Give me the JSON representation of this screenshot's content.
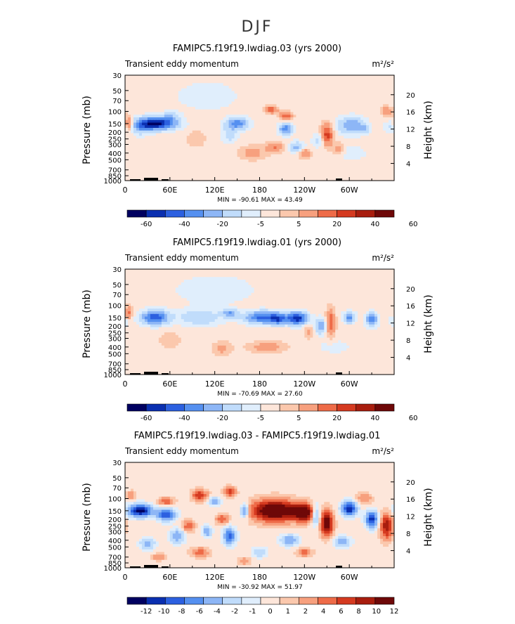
{
  "figure": {
    "title": "DJF"
  },
  "colors": {
    "div_scale": [
      "#000060",
      "#0a2fb0",
      "#2c60e0",
      "#5590f0",
      "#8db6f6",
      "#c0dcfb",
      "#e0eefc",
      "#fde6da",
      "#fbc8ad",
      "#f7a07e",
      "#ee6b48",
      "#d53a20",
      "#a81d0e",
      "#6e0808"
    ]
  },
  "chart_data": [
    {
      "type": "heatmap",
      "id": "panel1",
      "title": "FAMIPC5.f19f19.lwdiag.03 (yrs 2000)",
      "subtitle_left": "Transient eddy momentum",
      "units": "m²/s²",
      "ylabel": "Pressure (mb)",
      "ylabel_right": "Height (km)",
      "pressure_ticks": [
        "30",
        "50",
        "70",
        "100",
        "150",
        "200",
        "250",
        "300",
        "400",
        "500",
        "700",
        "850",
        "1000"
      ],
      "height_ticks": [
        "20",
        "16",
        "12",
        "8",
        "4"
      ],
      "lon_ticks": [
        "0",
        "60E",
        "120E",
        "180",
        "120W",
        "60W"
      ],
      "stats": "MIN = -90.61   MAX =  43.49",
      "colorbar_labels": [
        "-60",
        "-40",
        "-20",
        "-5",
        "5",
        "20",
        "40",
        "60"
      ],
      "blobs": [
        {
          "lon": 40,
          "p": 150,
          "w": 26,
          "h": 0.09,
          "a": -6.5
        },
        {
          "lon": 20,
          "p": 180,
          "w": 12,
          "h": 0.1,
          "a": -1.6
        },
        {
          "lon": 62,
          "p": 120,
          "w": 12,
          "h": 0.08,
          "a": -1.5
        },
        {
          "lon": 150,
          "p": 150,
          "w": 15,
          "h": 0.09,
          "a": -3.5
        },
        {
          "lon": 140,
          "p": 220,
          "w": 10,
          "h": 0.12,
          "a": -1.5
        },
        {
          "lon": 215,
          "p": 180,
          "w": 9,
          "h": 0.08,
          "a": -3.8
        },
        {
          "lon": 230,
          "p": 330,
          "w": 10,
          "h": 0.08,
          "a": -2.4
        },
        {
          "lon": 260,
          "p": 260,
          "w": 9,
          "h": 0.1,
          "a": -1.5
        },
        {
          "lon": 303,
          "p": 160,
          "w": 18,
          "h": 0.12,
          "a": -3.0
        },
        {
          "lon": 320,
          "p": 180,
          "w": 6,
          "h": 0.06,
          "a": -2.0
        },
        {
          "lon": 110,
          "p": 60,
          "w": 40,
          "h": 0.2,
          "a": -0.9
        },
        {
          "lon": 300,
          "p": 400,
          "w": 30,
          "h": 0.15,
          "a": -0.6
        },
        {
          "lon": 355,
          "p": 170,
          "w": 8,
          "h": 0.08,
          "a": -1.0
        },
        {
          "lon": 5,
          "p": 150,
          "w": 6,
          "h": 0.1,
          "a": 3.0
        },
        {
          "lon": 195,
          "p": 95,
          "w": 9,
          "h": 0.05,
          "a": 3.0
        },
        {
          "lon": 215,
          "p": 115,
          "w": 9,
          "h": 0.06,
          "a": 2.6
        },
        {
          "lon": 270,
          "p": 220,
          "w": 8,
          "h": 0.16,
          "a": 3.6
        },
        {
          "lon": 240,
          "p": 400,
          "w": 8,
          "h": 0.07,
          "a": 2.3
        },
        {
          "lon": 200,
          "p": 330,
          "w": 12,
          "h": 0.08,
          "a": 2.0
        },
        {
          "lon": 350,
          "p": 100,
          "w": 8,
          "h": 0.07,
          "a": 1.9
        },
        {
          "lon": 170,
          "p": 400,
          "w": 18,
          "h": 0.1,
          "a": 1.4
        },
        {
          "lon": 95,
          "p": 250,
          "w": 12,
          "h": 0.12,
          "a": 1.0
        },
        {
          "lon": 285,
          "p": 350,
          "w": 8,
          "h": 0.1,
          "a": 1.6
        }
      ]
    },
    {
      "type": "heatmap",
      "id": "panel2",
      "title": "FAMIPC5.f19f19.lwdiag.01 (yrs 2000)",
      "subtitle_left": "Transient eddy momentum",
      "units": "m²/s²",
      "ylabel": "Pressure (mb)",
      "ylabel_right": "Height (km)",
      "pressure_ticks": [
        "30",
        "50",
        "70",
        "100",
        "150",
        "200",
        "250",
        "300",
        "400",
        "500",
        "700",
        "850",
        "1000"
      ],
      "height_ticks": [
        "20",
        "16",
        "12",
        "8",
        "4"
      ],
      "lon_ticks": [
        "0",
        "60E",
        "120E",
        "180",
        "120W",
        "60W"
      ],
      "stats": "MIN = -70.69   MAX =  27.60",
      "colorbar_labels": [
        "-60",
        "-40",
        "-20",
        "-5",
        "5",
        "20",
        "40",
        "60"
      ],
      "blobs": [
        {
          "lon": 40,
          "p": 150,
          "w": 18,
          "h": 0.1,
          "a": -4.8
        },
        {
          "lon": 100,
          "p": 150,
          "w": 30,
          "h": 0.12,
          "a": -1.8
        },
        {
          "lon": 140,
          "p": 130,
          "w": 10,
          "h": 0.06,
          "a": -2.8
        },
        {
          "lon": 185,
          "p": 150,
          "w": 25,
          "h": 0.09,
          "a": -4.5
        },
        {
          "lon": 230,
          "p": 155,
          "w": 14,
          "h": 0.09,
          "a": -5.5
        },
        {
          "lon": 205,
          "p": 160,
          "w": 10,
          "h": 0.08,
          "a": -3.0
        },
        {
          "lon": 262,
          "p": 200,
          "w": 7,
          "h": 0.11,
          "a": -3.0
        },
        {
          "lon": 300,
          "p": 150,
          "w": 8,
          "h": 0.08,
          "a": -3.2
        },
        {
          "lon": 330,
          "p": 160,
          "w": 8,
          "h": 0.1,
          "a": -3.5
        },
        {
          "lon": 120,
          "p": 60,
          "w": 50,
          "h": 0.2,
          "a": -1.0
        },
        {
          "lon": 0,
          "p": 170,
          "w": 8,
          "h": 0.08,
          "a": -1.0
        },
        {
          "lon": 280,
          "p": 400,
          "w": 25,
          "h": 0.12,
          "a": -0.6
        },
        {
          "lon": 5,
          "p": 130,
          "w": 5,
          "h": 0.1,
          "a": 2.5
        },
        {
          "lon": 275,
          "p": 180,
          "w": 6,
          "h": 0.2,
          "a": 2.8
        },
        {
          "lon": 190,
          "p": 400,
          "w": 25,
          "h": 0.08,
          "a": 1.6
        },
        {
          "lon": 130,
          "p": 420,
          "w": 12,
          "h": 0.1,
          "a": 1.4
        },
        {
          "lon": 245,
          "p": 240,
          "w": 6,
          "h": 0.1,
          "a": 1.2
        },
        {
          "lon": 60,
          "p": 320,
          "w": 15,
          "h": 0.12,
          "a": 0.9
        }
      ]
    },
    {
      "type": "heatmap",
      "id": "panel3",
      "title": "FAMIPC5.f19f19.lwdiag.03 - FAMIPC5.f19f19.lwdiag.01",
      "subtitle_left": "Transient eddy momentum",
      "units": "m²/s²",
      "ylabel": "Pressure (mb)",
      "ylabel_right": "Height (km)",
      "pressure_ticks": [
        "30",
        "50",
        "70",
        "100",
        "150",
        "200",
        "250",
        "300",
        "400",
        "500",
        "700",
        "850",
        "1000"
      ],
      "height_ticks": [
        "20",
        "16",
        "12",
        "8",
        "4"
      ],
      "lon_ticks": [
        "0",
        "60E",
        "120E",
        "180",
        "120W",
        "60W"
      ],
      "stats": "MIN = -30.92   MAX =  51.97",
      "colorbar_labels": [
        "-12",
        "-10",
        "-8",
        "-6",
        "-4",
        "-2",
        "-1",
        "0",
        "1",
        "2",
        "4",
        "6",
        "8",
        "10",
        "12"
      ],
      "blobs": [
        {
          "lon": 200,
          "p": 150,
          "w": 30,
          "h": 0.15,
          "a": 7.5
        },
        {
          "lon": 240,
          "p": 160,
          "w": 14,
          "h": 0.12,
          "a": 6.5
        },
        {
          "lon": 270,
          "p": 230,
          "w": 8,
          "h": 0.18,
          "a": 6.5
        },
        {
          "lon": 350,
          "p": 250,
          "w": 8,
          "h": 0.18,
          "a": 5.0
        },
        {
          "lon": 100,
          "p": 90,
          "w": 10,
          "h": 0.08,
          "a": 4.0
        },
        {
          "lon": 85,
          "p": 250,
          "w": 8,
          "h": 0.08,
          "a": 3.0
        },
        {
          "lon": 140,
          "p": 80,
          "w": 8,
          "h": 0.07,
          "a": 3.5
        },
        {
          "lon": 55,
          "p": 110,
          "w": 10,
          "h": 0.06,
          "a": 3.0
        },
        {
          "lon": 130,
          "p": 200,
          "w": 8,
          "h": 0.07,
          "a": 3.0
        },
        {
          "lon": 8,
          "p": 90,
          "w": 6,
          "h": 0.06,
          "a": 2.0
        },
        {
          "lon": 100,
          "p": 600,
          "w": 12,
          "h": 0.07,
          "a": 2.5
        },
        {
          "lon": 160,
          "p": 800,
          "w": 8,
          "h": 0.05,
          "a": 2.0
        },
        {
          "lon": 320,
          "p": 100,
          "w": 10,
          "h": 0.08,
          "a": 2.0
        },
        {
          "lon": 20,
          "p": 150,
          "w": 16,
          "h": 0.09,
          "a": -6.5
        },
        {
          "lon": 55,
          "p": 170,
          "w": 12,
          "h": 0.09,
          "a": -5.0
        },
        {
          "lon": 300,
          "p": 140,
          "w": 10,
          "h": 0.1,
          "a": -6.0
        },
        {
          "lon": 330,
          "p": 200,
          "w": 8,
          "h": 0.12,
          "a": -5.5
        },
        {
          "lon": 255,
          "p": 170,
          "w": 6,
          "h": 0.14,
          "a": -4.0
        },
        {
          "lon": 140,
          "p": 350,
          "w": 8,
          "h": 0.12,
          "a": -4.5
        },
        {
          "lon": 160,
          "p": 150,
          "w": 6,
          "h": 0.1,
          "a": -4.0
        },
        {
          "lon": 70,
          "p": 350,
          "w": 10,
          "h": 0.1,
          "a": -3.0
        },
        {
          "lon": 120,
          "p": 110,
          "w": 8,
          "h": 0.06,
          "a": -3.0
        },
        {
          "lon": 220,
          "p": 400,
          "w": 12,
          "h": 0.08,
          "a": -3.0
        },
        {
          "lon": 30,
          "p": 450,
          "w": 10,
          "h": 0.08,
          "a": -2.5
        },
        {
          "lon": 290,
          "p": 420,
          "w": 12,
          "h": 0.08,
          "a": -2.5
        },
        {
          "lon": 180,
          "p": 600,
          "w": 10,
          "h": 0.07,
          "a": -2.0
        },
        {
          "lon": 110,
          "p": 300,
          "w": 6,
          "h": 0.08,
          "a": -3.0
        },
        {
          "lon": 45,
          "p": 700,
          "w": 8,
          "h": 0.05,
          "a": 2.0
        },
        {
          "lon": 240,
          "p": 600,
          "w": 10,
          "h": 0.06,
          "a": 2.5
        }
      ]
    }
  ]
}
